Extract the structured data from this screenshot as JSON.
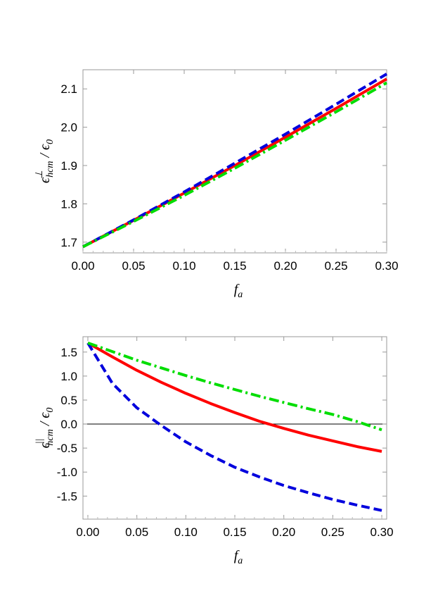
{
  "chart_data": [
    {
      "type": "line",
      "title": "",
      "xlabel": {
        "main": "f",
        "sub": "a"
      },
      "ylabel": {
        "main": "ϵ",
        "sup": "⊥",
        "sub": "hcm",
        "rest": " / ϵ",
        "rest_sub": "0"
      },
      "xlim": [
        0,
        0.3
      ],
      "ylim": [
        1.672,
        2.15
      ],
      "xticks": [
        "0.00",
        "0.05",
        "0.10",
        "0.15",
        "0.20",
        "0.25",
        "0.30"
      ],
      "yticks": [
        "1.7",
        "1.8",
        "1.9",
        "2.0",
        "2.1"
      ],
      "x": [
        0,
        0.05,
        0.1,
        0.15,
        0.2,
        0.25,
        0.3
      ],
      "series": [
        {
          "color": "#ff0000",
          "style": "solid",
          "values": [
            1.688,
            1.757,
            1.828,
            1.9,
            1.974,
            2.049,
            2.126
          ]
        },
        {
          "color": "#0000dd",
          "style": "dashed",
          "values": [
            1.688,
            1.758,
            1.831,
            1.906,
            1.982,
            2.06,
            2.139
          ]
        },
        {
          "color": "#00dd00",
          "style": "dashdot",
          "values": [
            1.688,
            1.754,
            1.822,
            1.893,
            1.966,
            2.04,
            2.116
          ]
        }
      ],
      "grid": false,
      "legend": "none"
    },
    {
      "type": "line",
      "title": "",
      "xlabel": {
        "main": "f",
        "sub": "a"
      },
      "ylabel": {
        "main": "ϵ",
        "sup": "||",
        "sub": "hcm",
        "rest": " / ϵ",
        "rest_sub": "0"
      },
      "xlim": [
        -0.005,
        0.305
      ],
      "ylim": [
        -1.98,
        1.82
      ],
      "xticks": [
        "0.00",
        "0.05",
        "0.10",
        "0.15",
        "0.20",
        "0.25",
        "0.30"
      ],
      "yticks": [
        "1.5",
        "1.0",
        "0.5",
        "0.0",
        "-0.5",
        "-1.0",
        "-1.5"
      ],
      "x": [
        0,
        0.025,
        0.05,
        0.075,
        0.1,
        0.125,
        0.15,
        0.175,
        0.2,
        0.225,
        0.25,
        0.275,
        0.3
      ],
      "series": [
        {
          "color": "#ff0000",
          "style": "solid",
          "values": [
            1.69,
            1.4,
            1.12,
            0.87,
            0.64,
            0.43,
            0.24,
            0.06,
            -0.09,
            -0.23,
            -0.35,
            -0.47,
            -0.57
          ]
        },
        {
          "color": "#0000dd",
          "style": "dashed",
          "values": [
            1.69,
            0.85,
            0.34,
            -0.03,
            -0.37,
            -0.65,
            -0.9,
            -1.1,
            -1.28,
            -1.43,
            -1.57,
            -1.69,
            -1.8
          ]
        },
        {
          "color": "#00dd00",
          "style": "dashdot",
          "values": [
            1.69,
            1.51,
            1.33,
            1.17,
            1.01,
            0.86,
            0.72,
            0.58,
            0.45,
            0.32,
            0.2,
            0.05,
            -0.12
          ]
        }
      ],
      "zero_line": true,
      "grid": false,
      "legend": "none"
    }
  ]
}
